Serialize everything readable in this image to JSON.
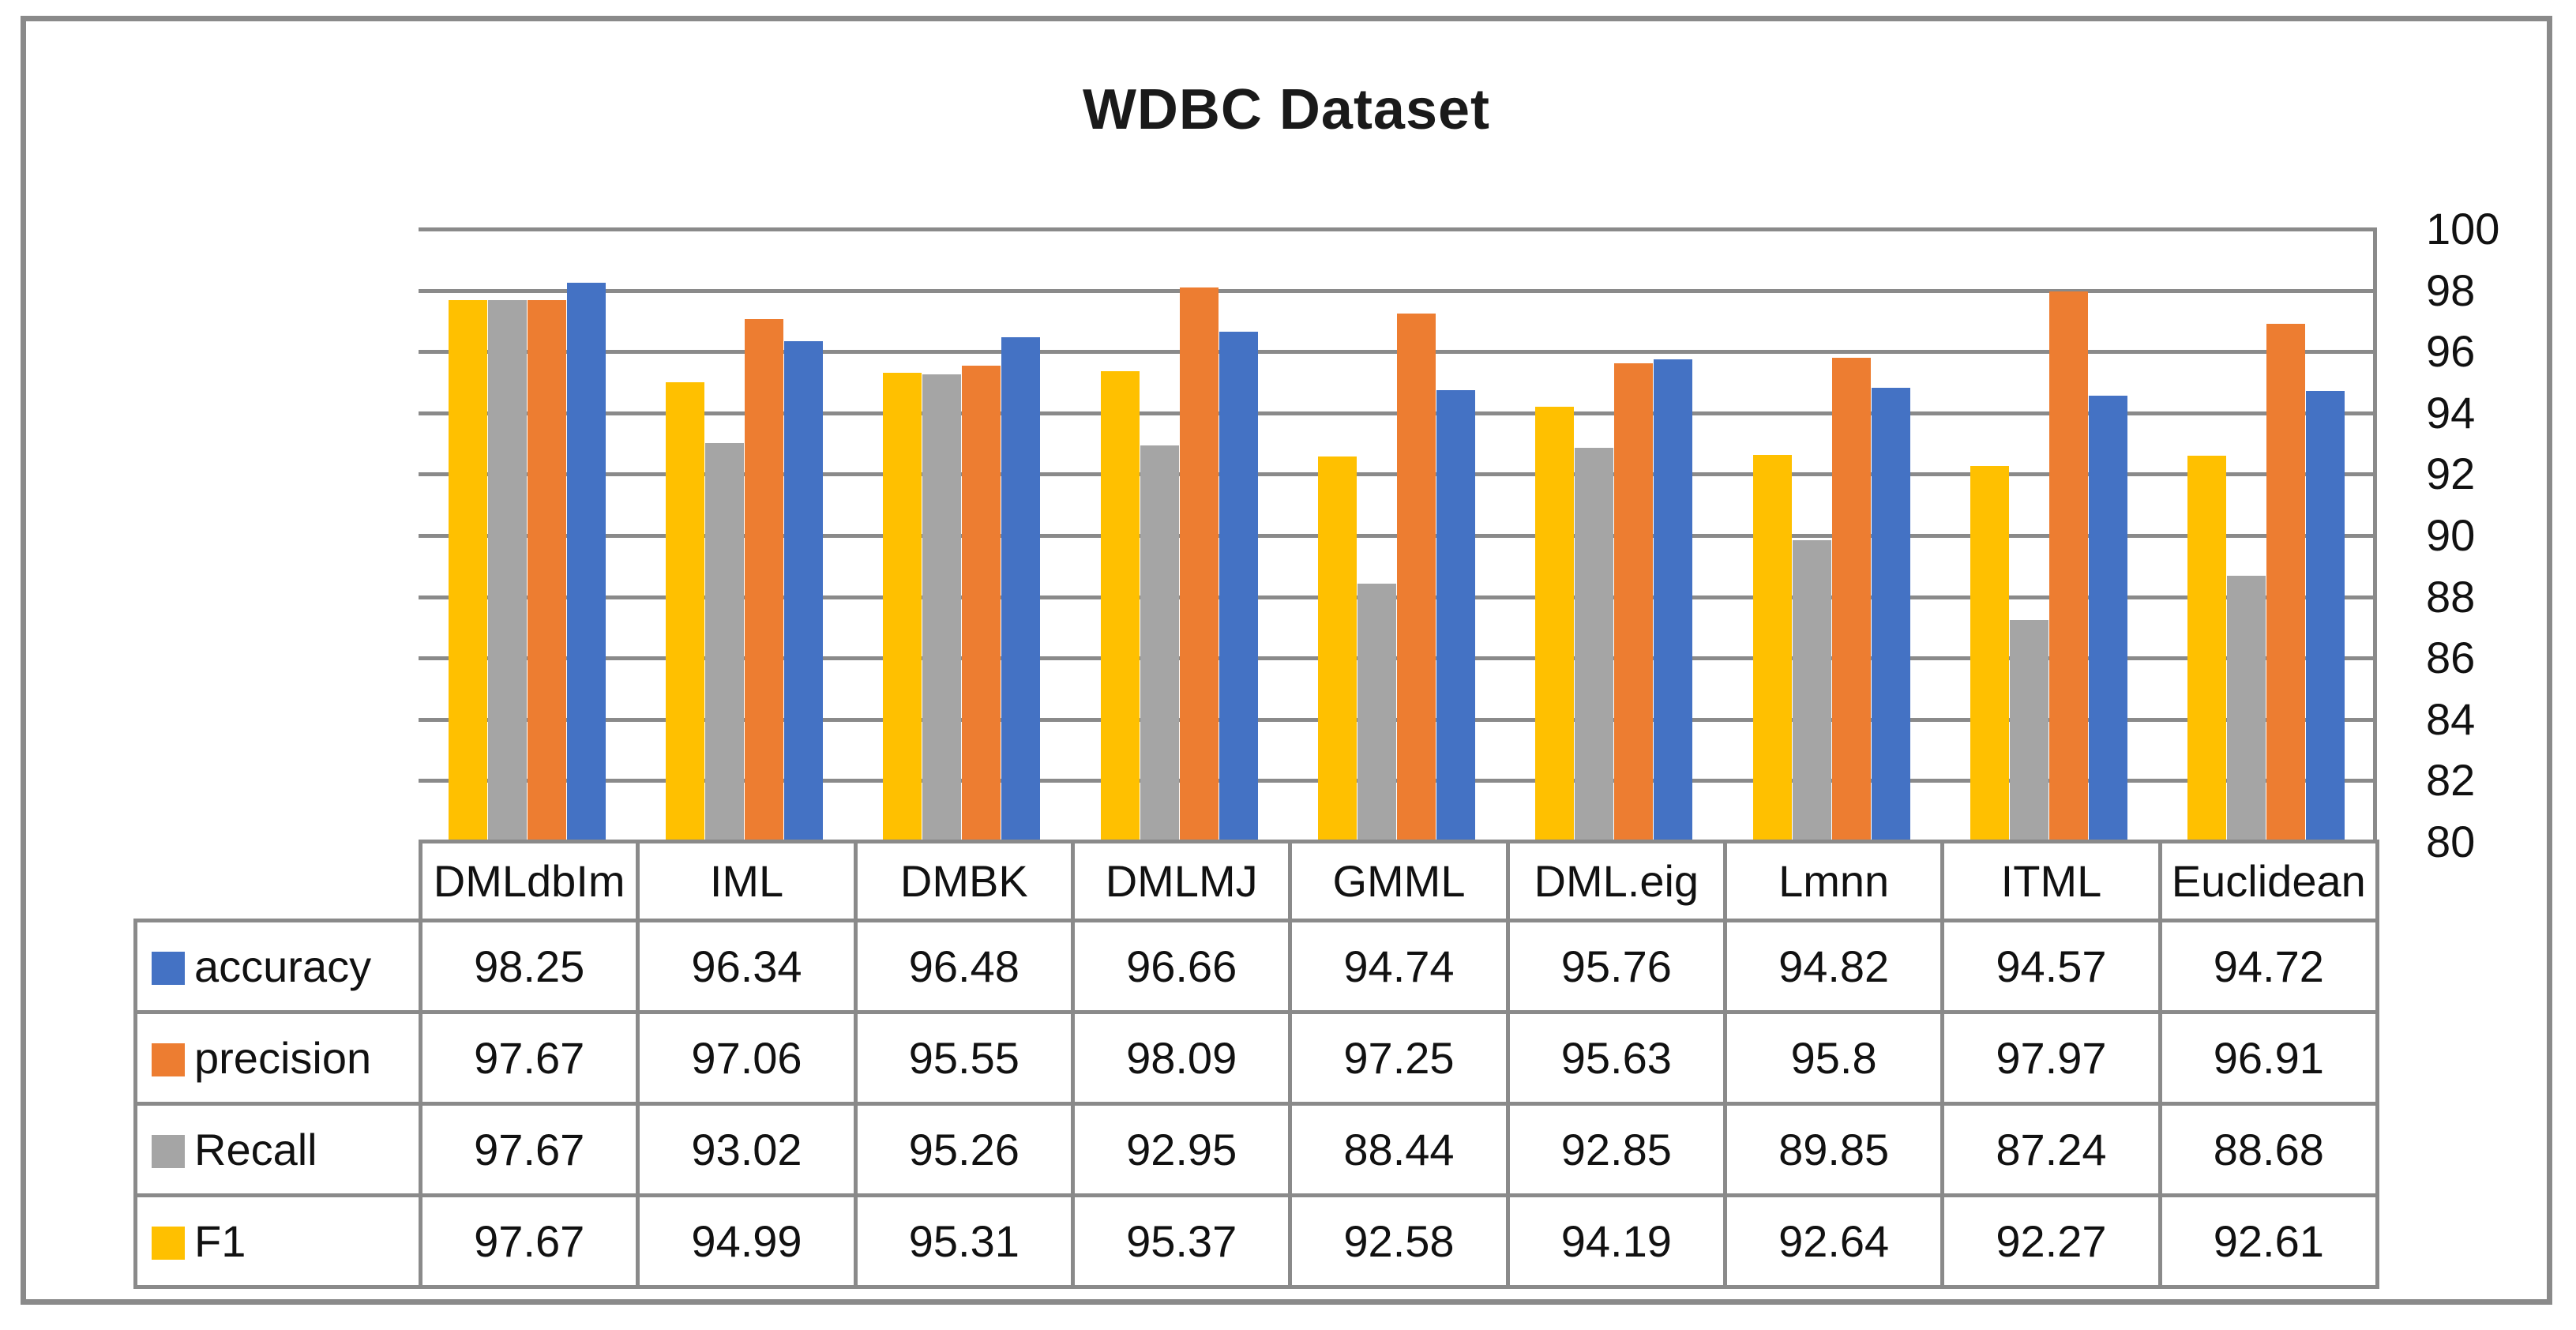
{
  "figure": {
    "title": "WDBC Dataset"
  },
  "chart_data": {
    "type": "bar",
    "title": "WDBC Dataset",
    "categories": [
      "DMLdbIm",
      "IML",
      "DMBK",
      "DMLMJ",
      "GMML",
      "DML.eig",
      "Lmnn",
      "ITML",
      "Euclidean"
    ],
    "series": [
      {
        "name": "accuracy",
        "color": "#4472C4",
        "values": [
          98.25,
          96.34,
          96.48,
          96.66,
          94.74,
          95.76,
          94.82,
          94.57,
          94.72
        ]
      },
      {
        "name": "precision",
        "color": "#ED7D31",
        "values": [
          97.67,
          97.06,
          95.55,
          98.09,
          97.25,
          95.63,
          95.8,
          97.97,
          96.91
        ]
      },
      {
        "name": "Recall",
        "color": "#A5A5A5",
        "values": [
          97.67,
          93.02,
          95.26,
          92.95,
          88.44,
          92.85,
          89.85,
          87.24,
          88.68
        ]
      },
      {
        "name": "F1",
        "color": "#FFC000",
        "values": [
          97.67,
          94.99,
          95.31,
          95.37,
          92.58,
          94.19,
          92.64,
          92.27,
          92.61
        ]
      }
    ],
    "bar_plot_order": [
      "F1",
      "Recall",
      "precision",
      "accuracy"
    ],
    "y_axis": {
      "min": 80,
      "max": 100,
      "step": 2,
      "ticks": [
        100,
        98,
        96,
        94,
        92,
        90,
        88,
        86,
        84,
        82,
        80
      ],
      "position": "right"
    },
    "grid": true,
    "legend_position": "table-left-column"
  },
  "colors": {
    "grid_and_border": "#8a8a8a",
    "text": "#111111",
    "background": "#ffffff"
  }
}
